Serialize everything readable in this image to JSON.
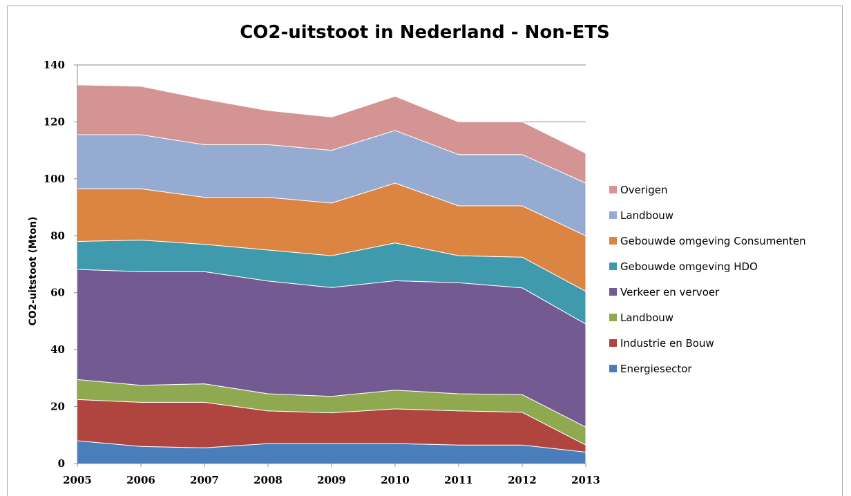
{
  "chart_data": {
    "type": "area",
    "stacked": true,
    "title": "CO2-uitstoot in Nederland - Non-ETS",
    "xlabel": "",
    "ylabel": "CO2-uitstoot (Mton)",
    "ylim": [
      0,
      140
    ],
    "yticks": [
      0,
      20,
      40,
      60,
      80,
      100,
      120,
      140
    ],
    "grid": "horizontal",
    "legend_position": "right",
    "categories": [
      "2005",
      "2006",
      "2007",
      "2008",
      "2009",
      "2010",
      "2011",
      "2012",
      "2013"
    ],
    "series": [
      {
        "name": "Energiesector",
        "color": "#4a7ebb",
        "values": [
          8,
          6,
          5.5,
          7,
          7,
          7,
          6.5,
          6.5,
          4
        ]
      },
      {
        "name": "Industrie en Bouw",
        "color": "#b04540",
        "values": [
          14.5,
          15.5,
          16,
          11.5,
          10.8,
          12.2,
          12,
          11.5,
          2.5
        ]
      },
      {
        "name": "Landbouw",
        "color": "#8ea94f",
        "values": [
          7,
          6,
          6.5,
          6,
          5.8,
          6.6,
          6,
          6.2,
          6.3
        ]
      },
      {
        "name": "Verkeer en vervoer",
        "color": "#735a92",
        "values": [
          38.7,
          39.9,
          39.4,
          39.6,
          38.2,
          38.4,
          39,
          37.5,
          36.2
        ]
      },
      {
        "name": "Gebouwde omgeving HDO",
        "color": "#3f9aae",
        "values": [
          9.8,
          11.1,
          9.6,
          10.9,
          11.2,
          13.3,
          9.5,
          10.8,
          11.5
        ]
      },
      {
        "name": "Gebouwde omgeving Consumenten",
        "color": "#dc8441",
        "values": [
          18.5,
          18,
          16.5,
          18.5,
          18.5,
          21,
          17.5,
          18,
          19.5
        ]
      },
      {
        "name": "Landbouw",
        "color": "#96abd1",
        "values": [
          19,
          19,
          18.5,
          18.5,
          18.5,
          18.5,
          18,
          18,
          18.5
        ]
      },
      {
        "name": "Overigen",
        "color": "#d39493",
        "values": [
          17.5,
          17,
          16,
          12,
          11.7,
          12,
          11.5,
          11.5,
          10.5
        ]
      }
    ]
  }
}
